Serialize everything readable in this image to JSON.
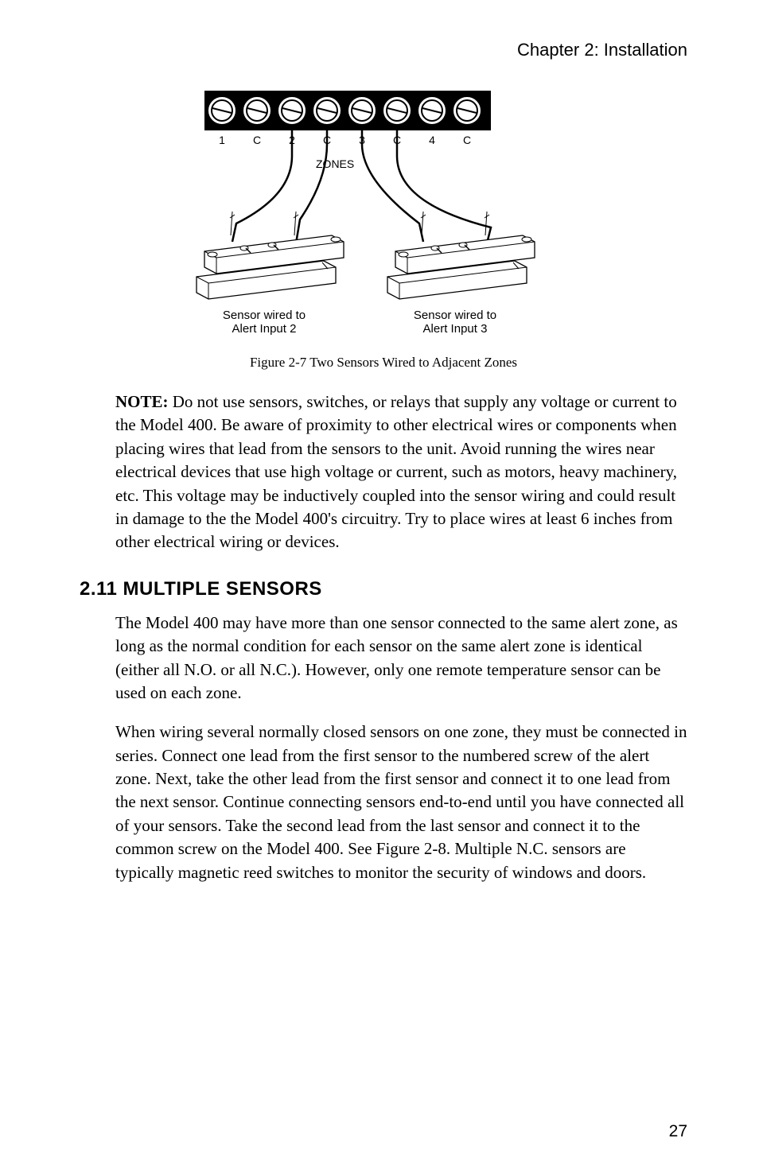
{
  "header": {
    "chapter": "Chapter 2: Installation"
  },
  "diagram": {
    "title": "Two Sensors Wired to Adjacent Zones",
    "terminals": [
      "1",
      "C",
      "2",
      "C",
      "3",
      "C",
      "4",
      "C"
    ],
    "zones_label": "ZONES",
    "sensor_labels": {
      "left_line1": "Sensor wired to",
      "left_line2": "Alert Input 2",
      "right_line1": "Sensor wired to",
      "right_line2": "Alert Input 3"
    },
    "colors": {
      "background": "#ffffff",
      "stroke": "#000000",
      "terminal_fill": "#ffffff"
    },
    "terminal_count": 8,
    "terminal_radius": 18,
    "terminal_spacing": 44
  },
  "figure_caption": "Figure 2-7 Two Sensors Wired to Adjacent Zones",
  "note": {
    "label": "NOTE:",
    "text": " Do not use sensors, switches, or relays that supply any voltage or current to the Model 400. Be aware of proximity to other electrical wires or components when placing wires that lead from the sensors to the unit. Avoid running the wires near electrical devices that use high voltage or current, such as motors, heavy machinery, etc. This voltage may be inductively coupled into the sensor wiring and could result in damage to the the Model 400's circuitry. Try to place wires at least 6 inches from other electrical wiring or devices."
  },
  "section": {
    "heading": "2.11 MULTIPLE SENSORS",
    "para1": "The Model 400 may have more than one sensor connected to the same alert zone, as long as the normal condition for each sensor on the same alert zone is identical (either all N.O. or all N.C.). However, only one remote temperature sensor can be used on each zone.",
    "para2": "When wiring several normally closed sensors on one zone, they must be connected in series. Connect one lead from the first sensor to the numbered screw of the alert zone. Next, take the other lead from the first sensor and connect it to one lead from the next sensor. Continue connecting sensors end-to-end until you have connected all of your sensors. Take the second lead from the last sensor and connect it to the common screw on the Model 400. See Figure 2-8. Multiple N.C. sensors are typically magnetic reed switches to monitor the security of windows and doors."
  },
  "page_number": "27"
}
